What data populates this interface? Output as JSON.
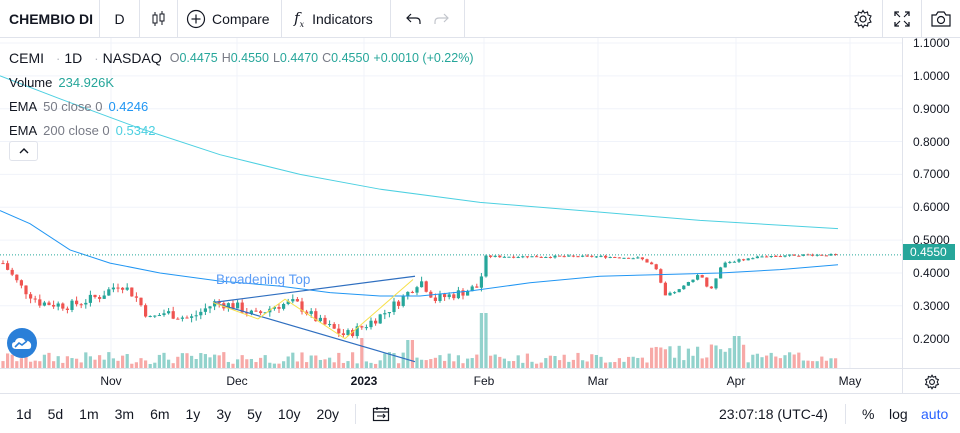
{
  "toolbar": {
    "symbol": "CHEMBIO DI",
    "interval": "D",
    "compare_label": "Compare",
    "indicators_label": "Indicators",
    "icons": [
      "candles-icon",
      "plus-circle-icon",
      "fx-icon",
      "undo-icon",
      "redo-icon",
      "gear-icon",
      "fullscreen-icon",
      "camera-icon"
    ]
  },
  "legend": {
    "ticker": "CEMI",
    "interval": "1D",
    "exchange": "NASDAQ",
    "open_k": "O",
    "open": "0.4475",
    "high_k": "H",
    "high": "0.4550",
    "low_k": "L",
    "low": "0.4470",
    "close_k": "C",
    "close": "0.4550",
    "change": "+0.0010 (+0.22%)",
    "volume_label": "Volume",
    "volume_value": "234.926K",
    "ema50_label": "EMA",
    "ema50_param": "50 close 0",
    "ema50_value": "0.4246",
    "ema200_label": "EMA",
    "ema200_param": "200 close 0",
    "ema200_value": "0.5342"
  },
  "annotation": "Broadening Top",
  "price_axis": [
    "1.1000",
    "1.0000",
    "0.9000",
    "0.8000",
    "0.7000",
    "0.6000",
    "0.5000",
    "0.4000",
    "0.3000",
    "0.2000"
  ],
  "last_price": "0.4550",
  "time_axis": [
    {
      "label": "Nov",
      "bold": false
    },
    {
      "label": "Dec",
      "bold": false
    },
    {
      "label": "2023",
      "bold": true
    },
    {
      "label": "Feb",
      "bold": false
    },
    {
      "label": "Mar",
      "bold": false
    },
    {
      "label": "Apr",
      "bold": false
    },
    {
      "label": "May",
      "bold": false
    }
  ],
  "bottom": {
    "ranges": [
      "1d",
      "5d",
      "1m",
      "3m",
      "6m",
      "1y",
      "3y",
      "5y",
      "10y",
      "20y"
    ],
    "clock": "23:07:18 (UTC-4)",
    "percent": "%",
    "log": "log",
    "auto": "auto"
  },
  "colors": {
    "up": "#26a69a",
    "down": "#ef5350",
    "ema50": "#2196f3",
    "ema200": "#4dd0e1",
    "accent": "#2962ff"
  },
  "chart_data": {
    "type": "candlestick",
    "ylim": [
      0.1,
      1.1
    ],
    "ema200_value": 0.5342,
    "ema50_value": 0.4246,
    "last_close": 0.455
  }
}
